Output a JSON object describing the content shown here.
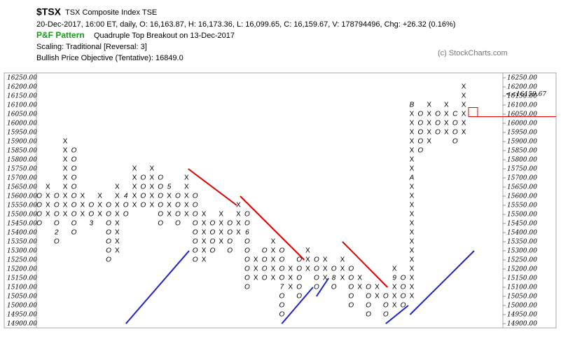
{
  "header": {
    "symbol": "$TSX",
    "name": "TSX Composite Index  TSE",
    "quote": "20-Dec-2017, 16:00 ET, daily, O: 16,163.87, H: 16,173.36, L: 16,099.65, C: 16,159.67, V: 178794496, Chg: +26.32 (0.16%)",
    "pattern_label": "P&F Pattern",
    "pattern": "Quadruple Top Breakout on 13-Dec-2017",
    "scaling": "Scaling: Traditional [Reversal: 3]",
    "objective": "Bullish Price Objective (Tentative): 16849.0",
    "credit": "(c) StockCharts.com"
  },
  "chart_data": {
    "type": "pnf",
    "box_size": 50,
    "x_color": "#000000",
    "o_color": "#c00000",
    "ylim": [
      14900,
      16250
    ],
    "yticks": [
      {
        "value": 14900,
        "label": "14900.00"
      },
      {
        "value": 14950,
        "label": "14950.00"
      },
      {
        "value": 15000,
        "label": "15000.00"
      },
      {
        "value": 15050,
        "label": "15050.00"
      },
      {
        "value": 15100,
        "label": "15100.00"
      },
      {
        "value": 15150,
        "label": "15150.00"
      },
      {
        "value": 15200,
        "label": "15200.00"
      },
      {
        "value": 15250,
        "label": "15250.00"
      },
      {
        "value": 15300,
        "label": "15300.00"
      },
      {
        "value": 15350,
        "label": "15350.00"
      },
      {
        "value": 15400,
        "label": "15400.00"
      },
      {
        "value": 15450,
        "label": "15450.00"
      },
      {
        "value": 15500,
        "label": "15500.00"
      },
      {
        "value": 15550,
        "label": "15550.00"
      },
      {
        "value": 15600,
        "label": "15600.00"
      },
      {
        "value": 15650,
        "label": "15650.00"
      },
      {
        "value": 15700,
        "label": "15700.00"
      },
      {
        "value": 15750,
        "label": "15750.00"
      },
      {
        "value": 15800,
        "label": "15800.00"
      },
      {
        "value": 15850,
        "label": "15850.00"
      },
      {
        "value": 15900,
        "label": "15900.00"
      },
      {
        "value": 15950,
        "label": "15950.00"
      },
      {
        "value": 16000,
        "label": "16000.00"
      },
      {
        "value": 16050,
        "label": "16050.00"
      },
      {
        "value": 16100,
        "label": "16100.00"
      },
      {
        "value": 16150,
        "label": "16150.00"
      },
      {
        "value": 16200,
        "label": "16200.00"
      },
      {
        "value": 16250,
        "label": "16250.00"
      }
    ],
    "columns": [
      {
        "type": "O",
        "low": 15450,
        "high": 15600
      },
      {
        "type": "X",
        "low": 15500,
        "high": 15650
      },
      {
        "type": "O",
        "low": 15350,
        "high": 15600
      },
      {
        "type": "X",
        "low": 15500,
        "high": 15900
      },
      {
        "type": "O",
        "low": 15400,
        "high": 15850
      },
      {
        "type": "X",
        "low": 15500,
        "high": 15600
      },
      {
        "type": "O",
        "low": 15450,
        "high": 15550
      },
      {
        "type": "X",
        "low": 15500,
        "high": 15600
      },
      {
        "type": "O",
        "low": 15250,
        "high": 15550
      },
      {
        "type": "X",
        "low": 15300,
        "high": 15650
      },
      {
        "type": "O",
        "low": 15500,
        "high": 15600
      },
      {
        "type": "X",
        "low": 15550,
        "high": 15750
      },
      {
        "type": "O",
        "low": 15550,
        "high": 15700
      },
      {
        "type": "X",
        "low": 15550,
        "high": 15750
      },
      {
        "type": "O",
        "low": 15450,
        "high": 15700
      },
      {
        "type": "X",
        "low": 15500,
        "high": 15650
      },
      {
        "type": "O",
        "low": 15450,
        "high": 15600
      },
      {
        "type": "X",
        "low": 15500,
        "high": 15700
      },
      {
        "type": "O",
        "low": 15250,
        "high": 15600
      },
      {
        "type": "X",
        "low": 15250,
        "high": 15500
      },
      {
        "type": "O",
        "low": 15300,
        "high": 15450
      },
      {
        "type": "X",
        "low": 15350,
        "high": 15500
      },
      {
        "type": "O",
        "low": 15300,
        "high": 15450
      },
      {
        "type": "X",
        "low": 15400,
        "high": 15550
      },
      {
        "type": "O",
        "low": 15100,
        "high": 15500
      },
      {
        "type": "X",
        "low": 15150,
        "high": 15250
      },
      {
        "type": "O",
        "low": 15150,
        "high": 15300
      },
      {
        "type": "X",
        "low": 15150,
        "high": 15350
      },
      {
        "type": "O",
        "low": 14950,
        "high": 15300
      },
      {
        "type": "X",
        "low": 15100,
        "high": 15200
      },
      {
        "type": "O",
        "low": 15050,
        "high": 15250
      },
      {
        "type": "X",
        "low": 15200,
        "high": 15300
      },
      {
        "type": "O",
        "low": 15100,
        "high": 15250
      },
      {
        "type": "X",
        "low": 15150,
        "high": 15250
      },
      {
        "type": "O",
        "low": 15100,
        "high": 15200
      },
      {
        "type": "X",
        "low": 15150,
        "high": 15250
      },
      {
        "type": "O",
        "low": 15000,
        "high": 15200
      },
      {
        "type": "X",
        "low": 15100,
        "high": 15150
      },
      {
        "type": "O",
        "low": 14950,
        "high": 15100
      },
      {
        "type": "X",
        "low": 15050,
        "high": 15100
      },
      {
        "type": "O",
        "low": 14950,
        "high": 15050
      },
      {
        "type": "X",
        "low": 15000,
        "high": 15200
      },
      {
        "type": "O",
        "low": 15000,
        "high": 15150
      },
      {
        "type": "X",
        "low": 15050,
        "high": 16100
      },
      {
        "type": "O",
        "low": 15850,
        "high": 16050
      },
      {
        "type": "X",
        "low": 15900,
        "high": 16100
      },
      {
        "type": "O",
        "low": 15950,
        "high": 16050
      },
      {
        "type": "X",
        "low": 15950,
        "high": 16100
      },
      {
        "type": "O",
        "low": 15900,
        "high": 16050
      },
      {
        "type": "X",
        "low": 15950,
        "high": 16200
      }
    ],
    "markers": [
      {
        "column": 2,
        "price": 15400,
        "label": "2"
      },
      {
        "column": 6,
        "price": 15450,
        "label": "3"
      },
      {
        "column": 10,
        "price": 15600,
        "label": "4"
      },
      {
        "column": 15,
        "price": 15650,
        "label": "5"
      },
      {
        "column": 24,
        "price": 15400,
        "label": "6"
      },
      {
        "column": 28,
        "price": 15100,
        "label": "7"
      },
      {
        "column": 34,
        "price": 15150,
        "label": "8"
      },
      {
        "column": 41,
        "price": 15150,
        "label": "9"
      },
      {
        "column": 43,
        "price": 15700,
        "label": "A"
      },
      {
        "column": 43,
        "price": 16100,
        "label": "B"
      },
      {
        "column": 48,
        "price": 16050,
        "label": "C"
      }
    ],
    "trendlines": [
      {
        "color": "#e00000",
        "x": [
          17.2,
          22.8
        ],
        "y": [
          15750,
          15550
        ]
      },
      {
        "color": "#e00000",
        "x": [
          23.2,
          30.6
        ],
        "y": [
          15600,
          15250
        ]
      },
      {
        "color": "#e00000",
        "x": [
          35,
          40.2
        ],
        "y": [
          15350,
          15100
        ]
      },
      {
        "color": "#2020d0",
        "x": [
          10,
          17.3
        ],
        "y": [
          14900,
          15300
        ]
      },
      {
        "color": "#2020d0",
        "x": [
          28,
          31.6
        ],
        "y": [
          14900,
          15100
        ]
      },
      {
        "color": "#2020d0",
        "x": [
          32,
          33.4
        ],
        "y": [
          15050,
          15150
        ]
      },
      {
        "color": "#2020d0",
        "x": [
          40,
          42.6
        ],
        "y": [
          14900,
          15000
        ]
      },
      {
        "color": "#2020d0",
        "x": [
          42.8,
          50.2
        ],
        "y": [
          14950,
          15300
        ]
      }
    ],
    "last_price": 16159.67,
    "last_price_label": "<<16159.67",
    "last_color": "#e00000"
  }
}
